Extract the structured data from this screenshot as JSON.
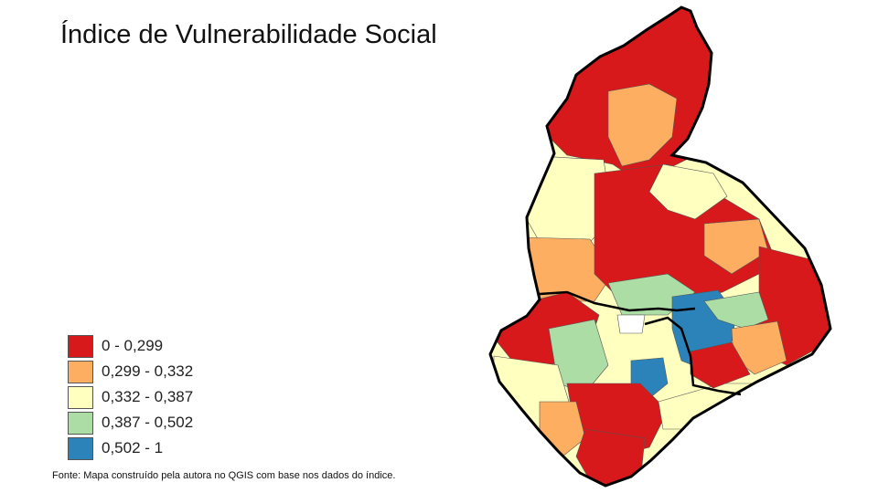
{
  "title": "Índice de Vulnerabilidade Social",
  "legend": {
    "items": [
      {
        "label": "0 - 0,299",
        "color": "#d7191c"
      },
      {
        "label": "0,299 - 0,332",
        "color": "#fdae61"
      },
      {
        "label": "0,332 - 0,387",
        "color": "#ffffbf"
      },
      {
        "label": "0,387 - 0,502",
        "color": "#abdda4"
      },
      {
        "label": "0,502 - 1",
        "color": "#2b83ba"
      }
    ]
  },
  "source": "Fonte: Mapa construído pela autora no QGIS com base nos dados do índice."
}
